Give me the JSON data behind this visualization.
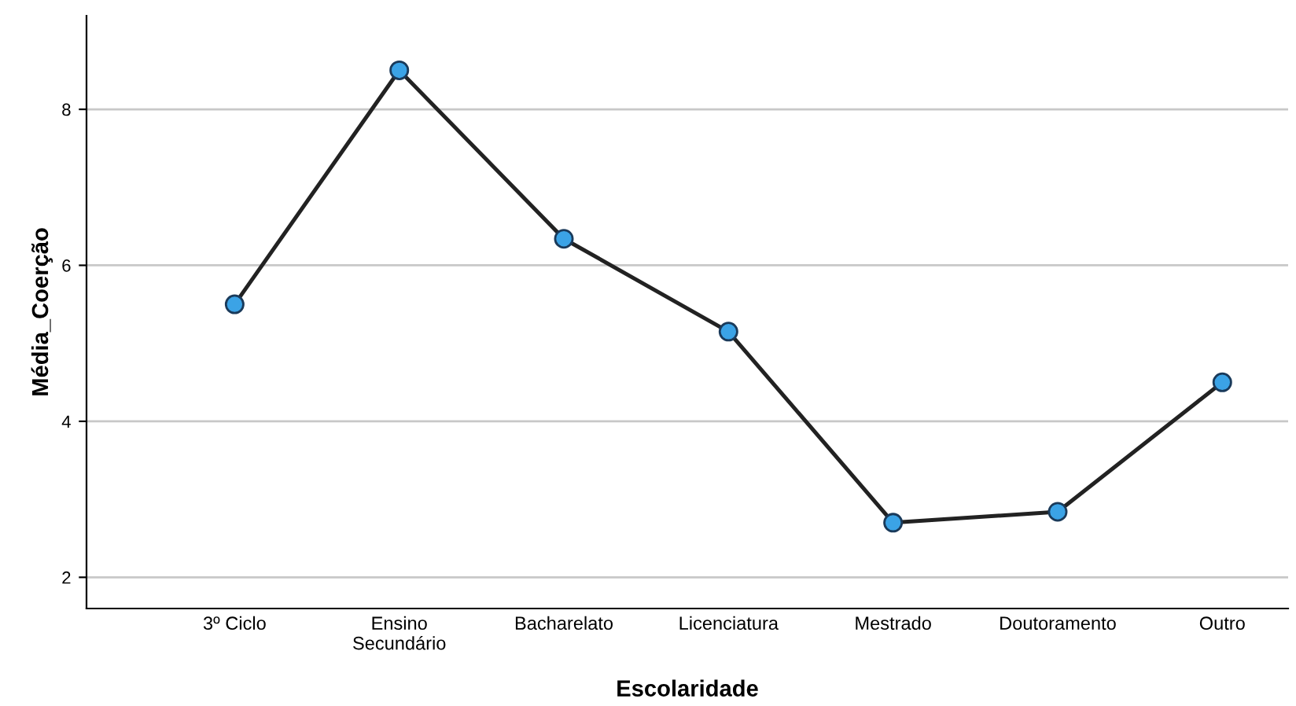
{
  "chart_data": {
    "type": "line",
    "xlabel": "Escolaridade",
    "ylabel": "Média_Coerção",
    "categories": [
      "3º Ciclo",
      "Ensino\nSecundário",
      "Bacharelato",
      "Licenciatura",
      "Mestrado",
      "Doutoramento",
      "Outro"
    ],
    "series": [
      {
        "color": "#222222",
        "values": [
          5.5,
          8.5,
          6.34,
          5.15,
          2.7,
          2.84,
          4.5
        ]
      }
    ],
    "marker": "circle",
    "ylim": [
      1.6,
      9.2
    ],
    "yticks": [
      2,
      4,
      6,
      8
    ],
    "grid": "y",
    "legend": false
  }
}
